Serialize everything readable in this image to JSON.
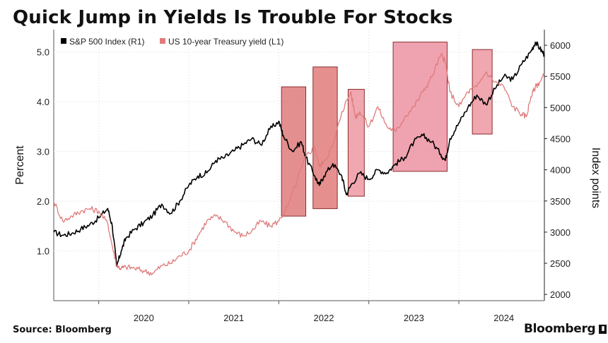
{
  "header": {
    "title": "Quick Jump in Yields Is Trouble For Stocks"
  },
  "footer": {
    "source": "Source:  Bloomberg",
    "brand": "Bloomberg"
  },
  "chart_data": {
    "type": "line",
    "title": "Quick Jump in Yields Is Trouble For Stocks",
    "x_range": [
      2019.5,
      2024.95
    ],
    "x_ticks": [
      {
        "label": "2020",
        "value": 2020.0
      },
      {
        "label": "2021",
        "value": 2021.0
      },
      {
        "label": "2022",
        "value": 2022.0
      },
      {
        "label": "2023",
        "value": 2023.0
      },
      {
        "label": "2024",
        "value": 2024.0
      }
    ],
    "left_axis": {
      "label": "Percent",
      "range": [
        0.0,
        5.45
      ],
      "ticks": [
        1.0,
        2.0,
        3.0,
        4.0,
        5.0
      ],
      "tick_labels": [
        "1.0",
        "2.0",
        "3.0",
        "4.0",
        "5.0"
      ]
    },
    "right_axis": {
      "label": "Index points",
      "range": [
        1900,
        6250
      ],
      "ticks": [
        2000,
        2500,
        3000,
        3500,
        4000,
        4500,
        5000,
        5500,
        6000
      ],
      "tick_labels": [
        "2000",
        "2500",
        "3000",
        "3500",
        "4000",
        "4500",
        "5000",
        "5500",
        "6000"
      ]
    },
    "legend": [
      {
        "name": "S&P 500 Index (R1)",
        "color": "#000000"
      },
      {
        "name": "US 10-year Treasury yield (L1)",
        "color": "#e07b7b"
      }
    ],
    "series": [
      {
        "name": "S&P 500 Index (R1)",
        "axis": "right",
        "color": "#000000",
        "points": [
          [
            2019.5,
            3000
          ],
          [
            2019.6,
            2950
          ],
          [
            2019.7,
            2980
          ],
          [
            2019.8,
            3050
          ],
          [
            2019.9,
            3120
          ],
          [
            2020.0,
            3230
          ],
          [
            2020.1,
            3380
          ],
          [
            2020.15,
            3100
          ],
          [
            2020.2,
            2450
          ],
          [
            2020.25,
            2700
          ],
          [
            2020.3,
            2900
          ],
          [
            2020.4,
            3050
          ],
          [
            2020.5,
            3150
          ],
          [
            2020.6,
            3270
          ],
          [
            2020.7,
            3450
          ],
          [
            2020.8,
            3300
          ],
          [
            2020.9,
            3500
          ],
          [
            2021.0,
            3750
          ],
          [
            2021.1,
            3900
          ],
          [
            2021.2,
            3950
          ],
          [
            2021.3,
            4150
          ],
          [
            2021.4,
            4200
          ],
          [
            2021.5,
            4300
          ],
          [
            2021.6,
            4400
          ],
          [
            2021.7,
            4500
          ],
          [
            2021.8,
            4400
          ],
          [
            2021.9,
            4650
          ],
          [
            2022.0,
            4780
          ],
          [
            2022.05,
            4550
          ],
          [
            2022.15,
            4300
          ],
          [
            2022.25,
            4450
          ],
          [
            2022.3,
            4200
          ],
          [
            2022.4,
            3900
          ],
          [
            2022.45,
            3750
          ],
          [
            2022.5,
            3900
          ],
          [
            2022.6,
            4100
          ],
          [
            2022.7,
            3900
          ],
          [
            2022.75,
            3600
          ],
          [
            2022.8,
            3750
          ],
          [
            2022.9,
            3950
          ],
          [
            2023.0,
            3850
          ],
          [
            2023.1,
            4000
          ],
          [
            2023.2,
            3950
          ],
          [
            2023.3,
            4100
          ],
          [
            2023.4,
            4200
          ],
          [
            2023.5,
            4450
          ],
          [
            2023.6,
            4550
          ],
          [
            2023.7,
            4450
          ],
          [
            2023.8,
            4250
          ],
          [
            2023.85,
            4150
          ],
          [
            2023.9,
            4500
          ],
          [
            2024.0,
            4750
          ],
          [
            2024.1,
            5000
          ],
          [
            2024.2,
            5200
          ],
          [
            2024.3,
            5050
          ],
          [
            2024.4,
            5300
          ],
          [
            2024.5,
            5500
          ],
          [
            2024.6,
            5450
          ],
          [
            2024.7,
            5700
          ],
          [
            2024.8,
            5900
          ],
          [
            2024.85,
            6050
          ],
          [
            2024.9,
            5950
          ],
          [
            2024.95,
            5850
          ]
        ]
      },
      {
        "name": "US 10-year Treasury yield (L1)",
        "axis": "left",
        "color": "#e07b7b",
        "points": [
          [
            2019.5,
            2.0
          ],
          [
            2019.6,
            1.6
          ],
          [
            2019.7,
            1.7
          ],
          [
            2019.8,
            1.8
          ],
          [
            2019.9,
            1.85
          ],
          [
            2020.0,
            1.8
          ],
          [
            2020.1,
            1.55
          ],
          [
            2020.15,
            1.1
          ],
          [
            2020.2,
            0.7
          ],
          [
            2020.25,
            0.65
          ],
          [
            2020.3,
            0.68
          ],
          [
            2020.4,
            0.65
          ],
          [
            2020.5,
            0.6
          ],
          [
            2020.6,
            0.55
          ],
          [
            2020.7,
            0.7
          ],
          [
            2020.8,
            0.75
          ],
          [
            2020.9,
            0.9
          ],
          [
            2021.0,
            1.0
          ],
          [
            2021.1,
            1.3
          ],
          [
            2021.2,
            1.6
          ],
          [
            2021.3,
            1.7
          ],
          [
            2021.4,
            1.6
          ],
          [
            2021.5,
            1.4
          ],
          [
            2021.6,
            1.3
          ],
          [
            2021.7,
            1.4
          ],
          [
            2021.8,
            1.6
          ],
          [
            2021.9,
            1.5
          ],
          [
            2022.0,
            1.6
          ],
          [
            2022.1,
            1.9
          ],
          [
            2022.2,
            2.4
          ],
          [
            2022.3,
            2.9
          ],
          [
            2022.4,
            3.1
          ],
          [
            2022.45,
            2.7
          ],
          [
            2022.5,
            2.8
          ],
          [
            2022.6,
            3.1
          ],
          [
            2022.7,
            3.8
          ],
          [
            2022.8,
            4.2
          ],
          [
            2022.85,
            3.7
          ],
          [
            2022.9,
            3.8
          ],
          [
            2023.0,
            3.5
          ],
          [
            2023.1,
            3.9
          ],
          [
            2023.2,
            3.5
          ],
          [
            2023.3,
            3.4
          ],
          [
            2023.4,
            3.7
          ],
          [
            2023.5,
            3.9
          ],
          [
            2023.6,
            4.2
          ],
          [
            2023.7,
            4.5
          ],
          [
            2023.8,
            4.95
          ],
          [
            2023.85,
            4.8
          ],
          [
            2023.9,
            4.2
          ],
          [
            2024.0,
            3.9
          ],
          [
            2024.1,
            4.2
          ],
          [
            2024.2,
            4.3
          ],
          [
            2024.3,
            4.6
          ],
          [
            2024.4,
            4.4
          ],
          [
            2024.5,
            4.3
          ],
          [
            2024.6,
            3.9
          ],
          [
            2024.7,
            3.75
          ],
          [
            2024.75,
            3.7
          ],
          [
            2024.8,
            4.1
          ],
          [
            2024.85,
            4.3
          ],
          [
            2024.9,
            4.4
          ],
          [
            2024.95,
            4.55
          ]
        ]
      }
    ],
    "highlight_periods": [
      {
        "start": 2022.03,
        "end": 2022.3,
        "low": 1.7,
        "high": 4.3,
        "color": "#dc7070"
      },
      {
        "start": 2022.38,
        "end": 2022.65,
        "low": 1.85,
        "high": 4.7,
        "color": "#de6f6f"
      },
      {
        "start": 2022.77,
        "end": 2022.95,
        "low": 2.1,
        "high": 4.25,
        "color": "#ec8e9a"
      },
      {
        "start": 2023.27,
        "end": 2023.87,
        "low": 2.6,
        "high": 5.2,
        "color": "#ea8898"
      },
      {
        "start": 2024.15,
        "end": 2024.37,
        "low": 3.35,
        "high": 5.05,
        "color": "#ec8e9a"
      }
    ]
  }
}
